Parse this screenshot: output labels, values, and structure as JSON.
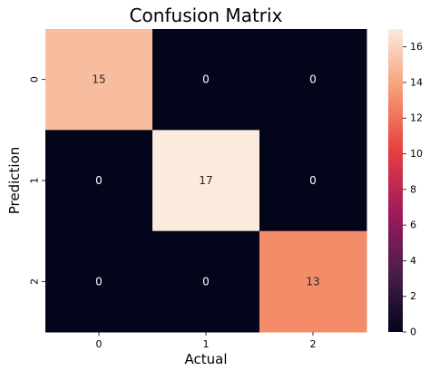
{
  "chart_data": {
    "type": "heatmap",
    "title": "Confusion Matrix",
    "xlabel": "Actual",
    "ylabel": "Prediction",
    "x_categories": [
      "0",
      "1",
      "2"
    ],
    "y_categories": [
      "0",
      "1",
      "2"
    ],
    "values": [
      [
        15,
        0,
        0
      ],
      [
        0,
        17,
        0
      ],
      [
        0,
        0,
        13
      ]
    ],
    "colorbar": {
      "min": 0,
      "max": 17,
      "ticks": [
        0,
        2,
        4,
        6,
        8,
        10,
        12,
        14,
        16
      ]
    },
    "colormap": [
      "#03051a",
      "#4c1d4b",
      "#a11a5b",
      "#e83f3f",
      "#f69c73",
      "#faebdd"
    ],
    "grid": false,
    "legend": "colorbar-right"
  }
}
